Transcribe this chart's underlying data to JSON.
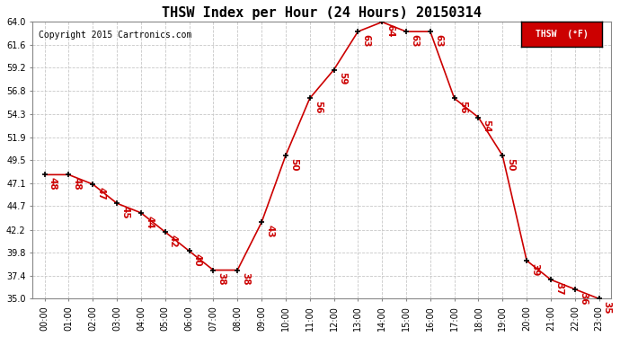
{
  "title": "THSW Index per Hour (24 Hours) 20150314",
  "copyright": "Copyright 2015 Cartronics.com",
  "legend_label": "THSW  (°F)",
  "hours": [
    0,
    1,
    2,
    3,
    4,
    5,
    6,
    7,
    8,
    9,
    10,
    11,
    12,
    13,
    14,
    15,
    16,
    17,
    18,
    19,
    20,
    21,
    22,
    23
  ],
  "values": [
    48,
    48,
    47,
    45,
    44,
    42,
    40,
    38,
    38,
    43,
    50,
    56,
    59,
    63,
    64,
    63,
    63,
    56,
    54,
    50,
    39,
    37,
    36,
    35
  ],
  "ylim": [
    35.0,
    64.0
  ],
  "yticks": [
    35.0,
    37.4,
    39.8,
    42.2,
    44.7,
    47.1,
    49.5,
    51.9,
    54.3,
    56.8,
    59.2,
    61.6,
    64.0
  ],
  "line_color": "#cc0000",
  "marker_color": "#000000",
  "label_color": "#cc0000",
  "grid_color": "#c8c8c8",
  "bg_color": "#ffffff",
  "legend_bg": "#cc0000",
  "legend_text_color": "#ffffff",
  "title_fontsize": 11,
  "label_fontsize": 7.5,
  "copyright_fontsize": 7,
  "tick_fontsize": 7
}
